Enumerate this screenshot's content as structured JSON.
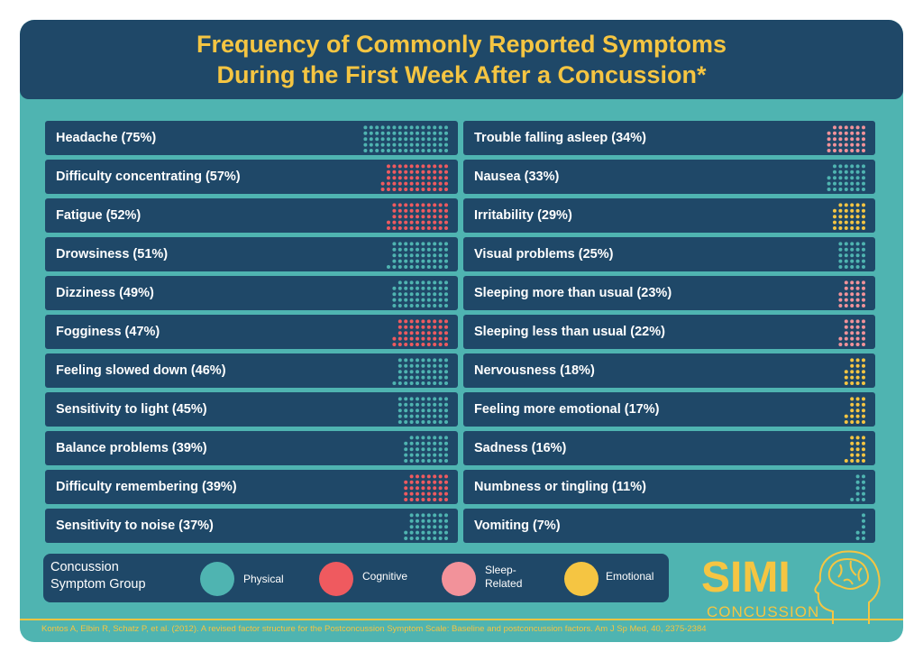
{
  "header": {
    "title_line1": "Frequency of Commonly Reported Symptoms",
    "title_line2": "During the First Week After a  Concussion*"
  },
  "colors": {
    "Physical": "#4fb4b1",
    "Cognitive": "#ef5a5f",
    "Sleep-Related": "#f2929a",
    "Emotional": "#f5c542"
  },
  "chart_data": {
    "type": "table",
    "title": "Frequency of Commonly Reported Symptoms During the First Week After a  Concussion*",
    "units": "percent of patients (one dot = 1%)",
    "left_column": [
      {
        "label": "Headache (75%)",
        "value": 75,
        "group": "Physical"
      },
      {
        "label": "Difficulty concentrating (57%)",
        "value": 57,
        "group": "Cognitive"
      },
      {
        "label": "Fatigue (52%)",
        "value": 52,
        "group": "Cognitive"
      },
      {
        "label": "Drowsiness (51%)",
        "value": 51,
        "group": "Physical"
      },
      {
        "label": "Dizziness (49%)",
        "value": 49,
        "group": "Physical"
      },
      {
        "label": "Fogginess (47%)",
        "value": 47,
        "group": "Cognitive"
      },
      {
        "label": "Feeling slowed down (46%)",
        "value": 46,
        "group": "Physical"
      },
      {
        "label": "Sensitivity to light (45%)",
        "value": 45,
        "group": "Physical"
      },
      {
        "label": "Balance problems (39%)",
        "value": 39,
        "group": "Physical"
      },
      {
        "label": "Difficulty remembering (39%)",
        "value": 39,
        "group": "Cognitive"
      },
      {
        "label": "Sensitivity to noise (37%)",
        "value": 37,
        "group": "Physical"
      }
    ],
    "right_column": [
      {
        "label": "Trouble falling asleep (34%)",
        "value": 34,
        "group": "Sleep-Related"
      },
      {
        "label": "Nausea (33%)",
        "value": 33,
        "group": "Physical"
      },
      {
        "label": "Irritability (29%)",
        "value": 29,
        "group": "Emotional"
      },
      {
        "label": "Visual problems (25%)",
        "value": 25,
        "group": "Physical"
      },
      {
        "label": "Sleeping more than usual (23%)",
        "value": 23,
        "group": "Sleep-Related"
      },
      {
        "label": "Sleeping less than usual (22%)",
        "value": 22,
        "group": "Sleep-Related"
      },
      {
        "label": "Nervousness (18%)",
        "value": 18,
        "group": "Emotional"
      },
      {
        "label": "Feeling more emotional (17%)",
        "value": 17,
        "group": "Emotional"
      },
      {
        "label": "Sadness (16%)",
        "value": 16,
        "group": "Emotional"
      },
      {
        "label": "Numbness or tingling (11%)",
        "value": 11,
        "group": "Physical"
      },
      {
        "label": "Vomiting (7%)",
        "value": 7,
        "group": "Physical"
      }
    ]
  },
  "legend": {
    "title_line1": "Concussion",
    "title_line2": "Symptom Group",
    "items": [
      {
        "line1": "Physical",
        "line2": "",
        "group": "Physical"
      },
      {
        "line1": "Cognitive",
        "line2": "",
        "group": "Cognitive"
      },
      {
        "line1": "Sleep-",
        "line2": "Related",
        "group": "Sleep-Related"
      },
      {
        "line1": "Emotional",
        "line2": "",
        "group": "Emotional"
      }
    ]
  },
  "logo": {
    "letters": "SIMI",
    "word": "CONCUSSION"
  },
  "citation": "Kontos A, Elbin R, Schatz P, et al. (2012). A revised factor structure for the Postconcussion Symptom Scale: Baseline and postconcussion factors. Am J Sp Med, 40, 2375-2384"
}
